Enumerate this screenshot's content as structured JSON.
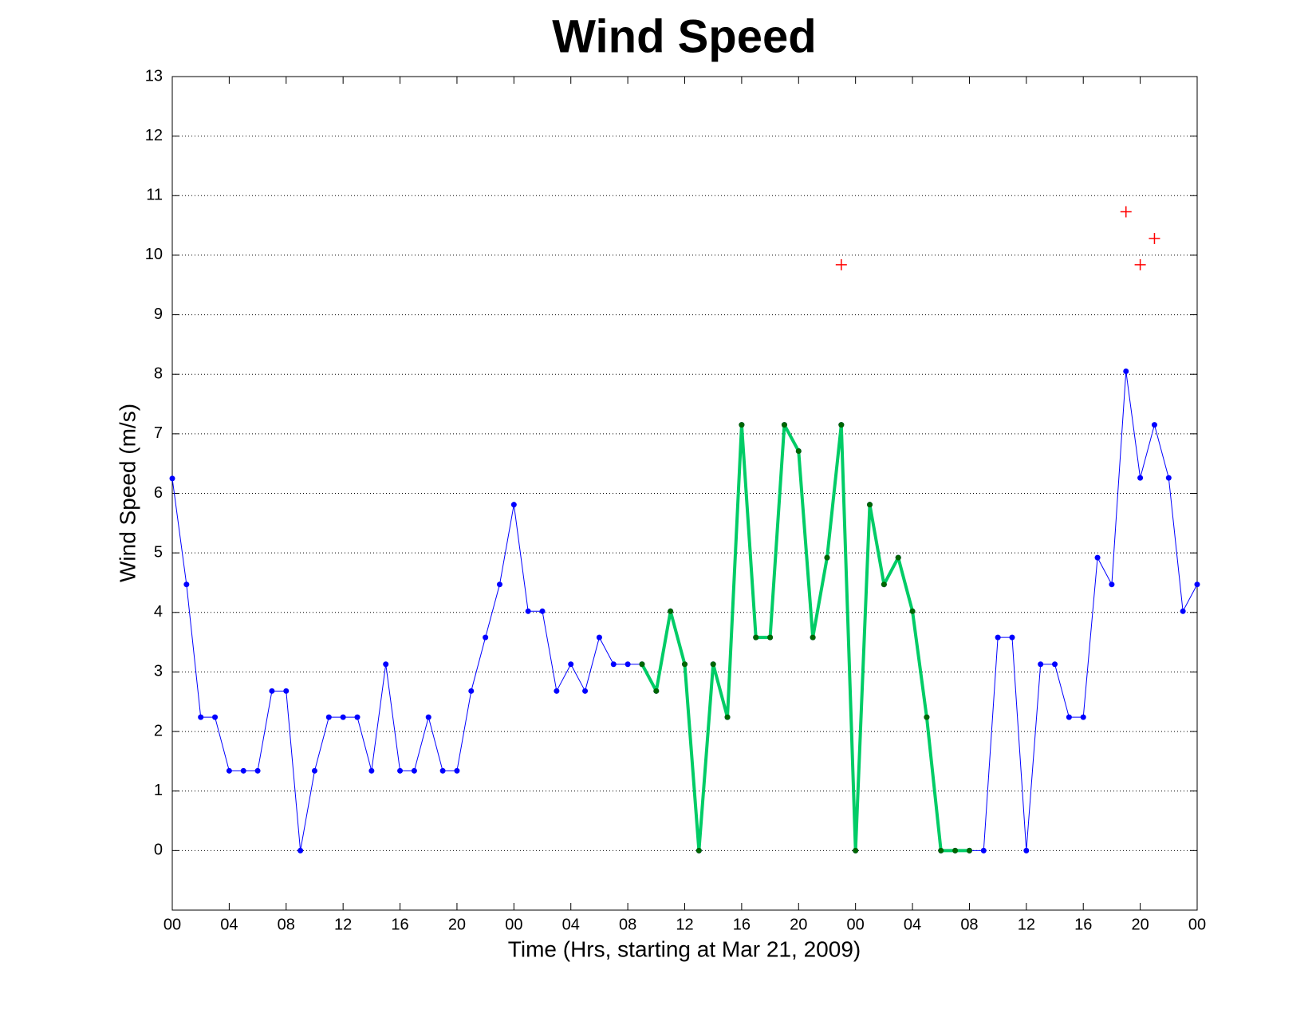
{
  "chart_data": {
    "type": "line",
    "title": "Wind Speed",
    "xlabel": "Time (Hrs, starting at Mar 21, 2009)",
    "ylabel": "Wind Speed (m/s)",
    "xlim": [
      0,
      72
    ],
    "ylim": [
      -1,
      13
    ],
    "xticks": [
      {
        "value": 0,
        "label": "00"
      },
      {
        "value": 4,
        "label": "04"
      },
      {
        "value": 8,
        "label": "08"
      },
      12,
      16,
      20,
      {
        "value": 24,
        "label": "00"
      },
      {
        "value": 28,
        "label": "04"
      },
      {
        "value": 32,
        "label": "08"
      },
      {
        "value": 36,
        "label": "12"
      },
      {
        "value": 40,
        "label": "16"
      },
      {
        "value": 44,
        "label": "20"
      },
      {
        "value": 48,
        "label": "00"
      },
      {
        "value": 52,
        "label": "04"
      },
      {
        "value": 56,
        "label": "08"
      },
      {
        "value": 60,
        "label": "12"
      },
      {
        "value": 64,
        "label": "16"
      },
      {
        "value": 68,
        "label": "20"
      },
      {
        "value": 72,
        "label": "00"
      }
    ],
    "yticks": [
      0,
      1,
      2,
      3,
      4,
      5,
      6,
      7,
      8,
      9,
      10,
      11,
      12,
      13
    ],
    "grid": true,
    "series": [
      {
        "color": "#0000ff",
        "line_width": 1,
        "marker": "dot",
        "marker_color": "#0000ff",
        "x": [
          0,
          1,
          2,
          3,
          4,
          5,
          6,
          7,
          8,
          9,
          10,
          11,
          12,
          13,
          14,
          15,
          16,
          17,
          18,
          19,
          20,
          21,
          22,
          23,
          24,
          25,
          26,
          27,
          28,
          29,
          30,
          31,
          32,
          33,
          34,
          35,
          36,
          37,
          38,
          39,
          40,
          41,
          42,
          43,
          44,
          45,
          46,
          47,
          48,
          49,
          50,
          51,
          52,
          53,
          54,
          55,
          56,
          57,
          58,
          59,
          60,
          61,
          62,
          63,
          64,
          65,
          66,
          67,
          68,
          69,
          70,
          71,
          72
        ],
        "values": [
          6.25,
          4.47,
          2.24,
          2.24,
          1.34,
          1.34,
          1.34,
          2.68,
          2.68,
          0,
          1.34,
          2.24,
          2.24,
          2.24,
          1.34,
          3.13,
          1.34,
          1.34,
          2.24,
          1.34,
          1.34,
          2.68,
          3.58,
          4.47,
          5.81,
          4.02,
          4.02,
          2.68,
          3.13,
          2.68,
          3.58,
          3.13,
          3.13,
          3.13,
          2.68,
          4.02,
          3.13,
          0,
          3.13,
          2.24,
          7.15,
          3.58,
          3.58,
          7.15,
          6.71,
          3.58,
          4.92,
          7.15,
          0,
          5.81,
          4.47,
          4.92,
          4.02,
          2.24,
          0,
          0,
          0,
          0,
          3.58,
          3.58,
          0,
          3.13,
          3.13,
          2.24,
          2.24,
          4.92,
          4.47,
          8.05,
          6.26,
          7.15,
          6.26,
          4.02,
          4.47
        ]
      },
      {
        "color": "#00cc66",
        "line_width": 4,
        "marker": "dot",
        "marker_color": "#006600",
        "x": [
          33,
          34,
          35,
          36,
          37,
          38,
          39,
          40,
          41,
          42,
          43,
          44,
          45,
          46,
          47,
          48,
          49,
          50,
          51,
          52,
          53,
          54,
          55,
          56
        ],
        "values": [
          3.13,
          2.68,
          4.02,
          3.13,
          0,
          3.13,
          2.24,
          7.15,
          3.58,
          3.58,
          7.15,
          6.71,
          3.58,
          4.92,
          7.15,
          0,
          5.81,
          4.47,
          4.92,
          4.02,
          2.24,
          0,
          0,
          0
        ]
      },
      {
        "color": "#ff0000",
        "line_width": 0,
        "marker": "+",
        "marker_color": "#ff0000",
        "x": [
          47,
          67,
          68,
          69
        ],
        "values": [
          9.84,
          10.73,
          9.84,
          10.28
        ]
      }
    ]
  }
}
